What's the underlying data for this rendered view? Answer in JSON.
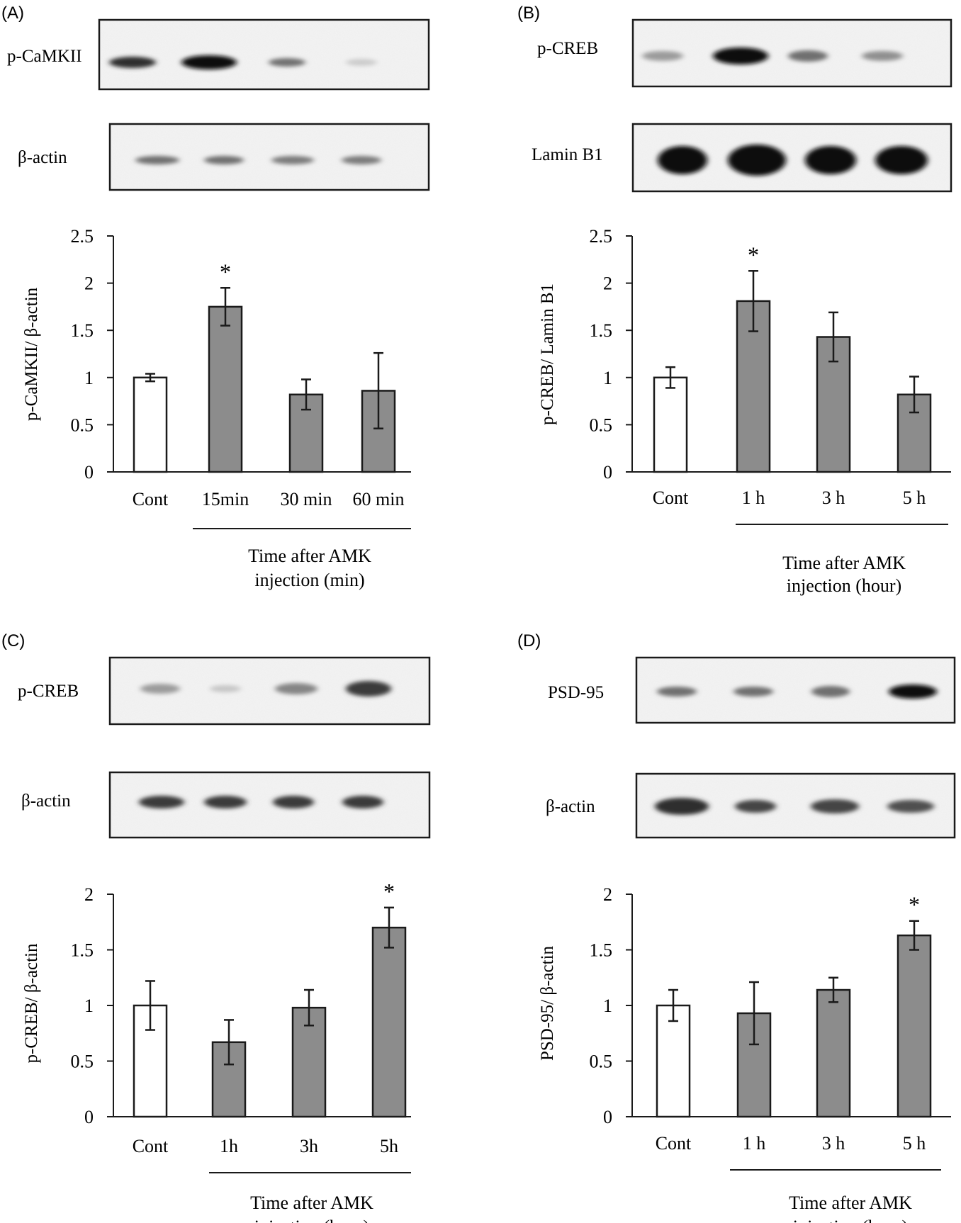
{
  "panels": [
    {
      "letter": "(A)",
      "blots": [
        {
          "label": "p-CaMKII",
          "intensity": [
            0.85,
            1.0,
            0.55,
            0.12
          ]
        },
        {
          "label": "β-actin",
          "intensity": [
            0.55,
            0.55,
            0.5,
            0.5
          ]
        }
      ],
      "caption": [
        "Time after AMK",
        "injection (min)"
      ]
    },
    {
      "letter": "(B)",
      "blots": [
        {
          "label": "p-CREB",
          "intensity": [
            0.35,
            1.0,
            0.55,
            0.4
          ]
        },
        {
          "label": "Lamin B1",
          "intensity": [
            1.0,
            1.0,
            1.0,
            1.0
          ]
        }
      ],
      "caption": [
        "Time after AMK",
        "injection (hour)"
      ]
    },
    {
      "letter": "(C)",
      "blots": [
        {
          "label": "p-CREB",
          "intensity": [
            0.35,
            0.15,
            0.45,
            0.8
          ]
        },
        {
          "label": "β-actin",
          "intensity": [
            0.8,
            0.8,
            0.8,
            0.8
          ]
        }
      ],
      "caption": [
        "Time after AMK",
        "injection (hour)"
      ]
    },
    {
      "letter": "(D)",
      "blots": [
        {
          "label": "PSD-95",
          "intensity": [
            0.55,
            0.55,
            0.55,
            1.0
          ]
        },
        {
          "label": "β-actin",
          "intensity": [
            0.85,
            0.75,
            0.75,
            0.7
          ]
        }
      ],
      "caption": [
        "Time after AMK",
        "injection (hour)"
      ]
    }
  ],
  "colors": {
    "control_bar": "#ffffff",
    "treated_bar": "#8c8c8c",
    "stroke": "#1a1a1a"
  },
  "chart_data": [
    {
      "type": "bar",
      "categories": [
        "Cont",
        "15min",
        "30 min",
        "60 min"
      ],
      "values": [
        1.0,
        1.75,
        0.82,
        0.86
      ],
      "errors": [
        0.04,
        0.2,
        0.16,
        0.4
      ],
      "significant": [
        false,
        true,
        false,
        false
      ],
      "significance_marker": "*",
      "ylabel": "p-CaMKII/ β-actin",
      "ylim": [
        0,
        2.5
      ],
      "yticks": [
        "0",
        "0.5",
        "1",
        "1.5",
        "2",
        "2.5"
      ],
      "xlabel": "Time after AMK injection (min)",
      "grid": false
    },
    {
      "type": "bar",
      "categories": [
        "Cont",
        "1 h",
        "3 h",
        "5 h"
      ],
      "values": [
        1.0,
        1.81,
        1.43,
        0.82
      ],
      "errors": [
        0.11,
        0.32,
        0.26,
        0.19
      ],
      "significant": [
        false,
        true,
        false,
        false
      ],
      "significance_marker": "*",
      "ylabel": "p-CREB/ Lamin B1",
      "ylim": [
        0,
        2.5
      ],
      "yticks": [
        "0",
        "0.5",
        "1",
        "1.5",
        "2",
        "2.5"
      ],
      "xlabel": "Time after AMK injection (hour)",
      "grid": false
    },
    {
      "type": "bar",
      "categories": [
        "Cont",
        "1h",
        "3h",
        "5h"
      ],
      "values": [
        1.0,
        0.67,
        0.98,
        1.7
      ],
      "errors": [
        0.22,
        0.2,
        0.16,
        0.18
      ],
      "significant": [
        false,
        false,
        false,
        true
      ],
      "significance_marker": "*",
      "ylabel": "p-CREB/ β-actin",
      "ylim": [
        0,
        2
      ],
      "yticks": [
        "0",
        "0.5",
        "1",
        "1.5",
        "2"
      ],
      "xlabel": "Time after AMK injection (hour)",
      "grid": false
    },
    {
      "type": "bar",
      "categories": [
        "Cont",
        "1 h",
        "3 h",
        "5 h"
      ],
      "values": [
        1.0,
        0.93,
        1.14,
        1.63
      ],
      "errors": [
        0.14,
        0.28,
        0.11,
        0.13
      ],
      "significant": [
        false,
        false,
        false,
        true
      ],
      "significance_marker": "*",
      "ylabel": "PSD-95/ β-actin",
      "ylim": [
        0,
        2
      ],
      "yticks": [
        "0",
        "0.5",
        "1",
        "1.5",
        "2"
      ],
      "xlabel": "Time after AMK injection (hour)",
      "grid": false
    }
  ]
}
